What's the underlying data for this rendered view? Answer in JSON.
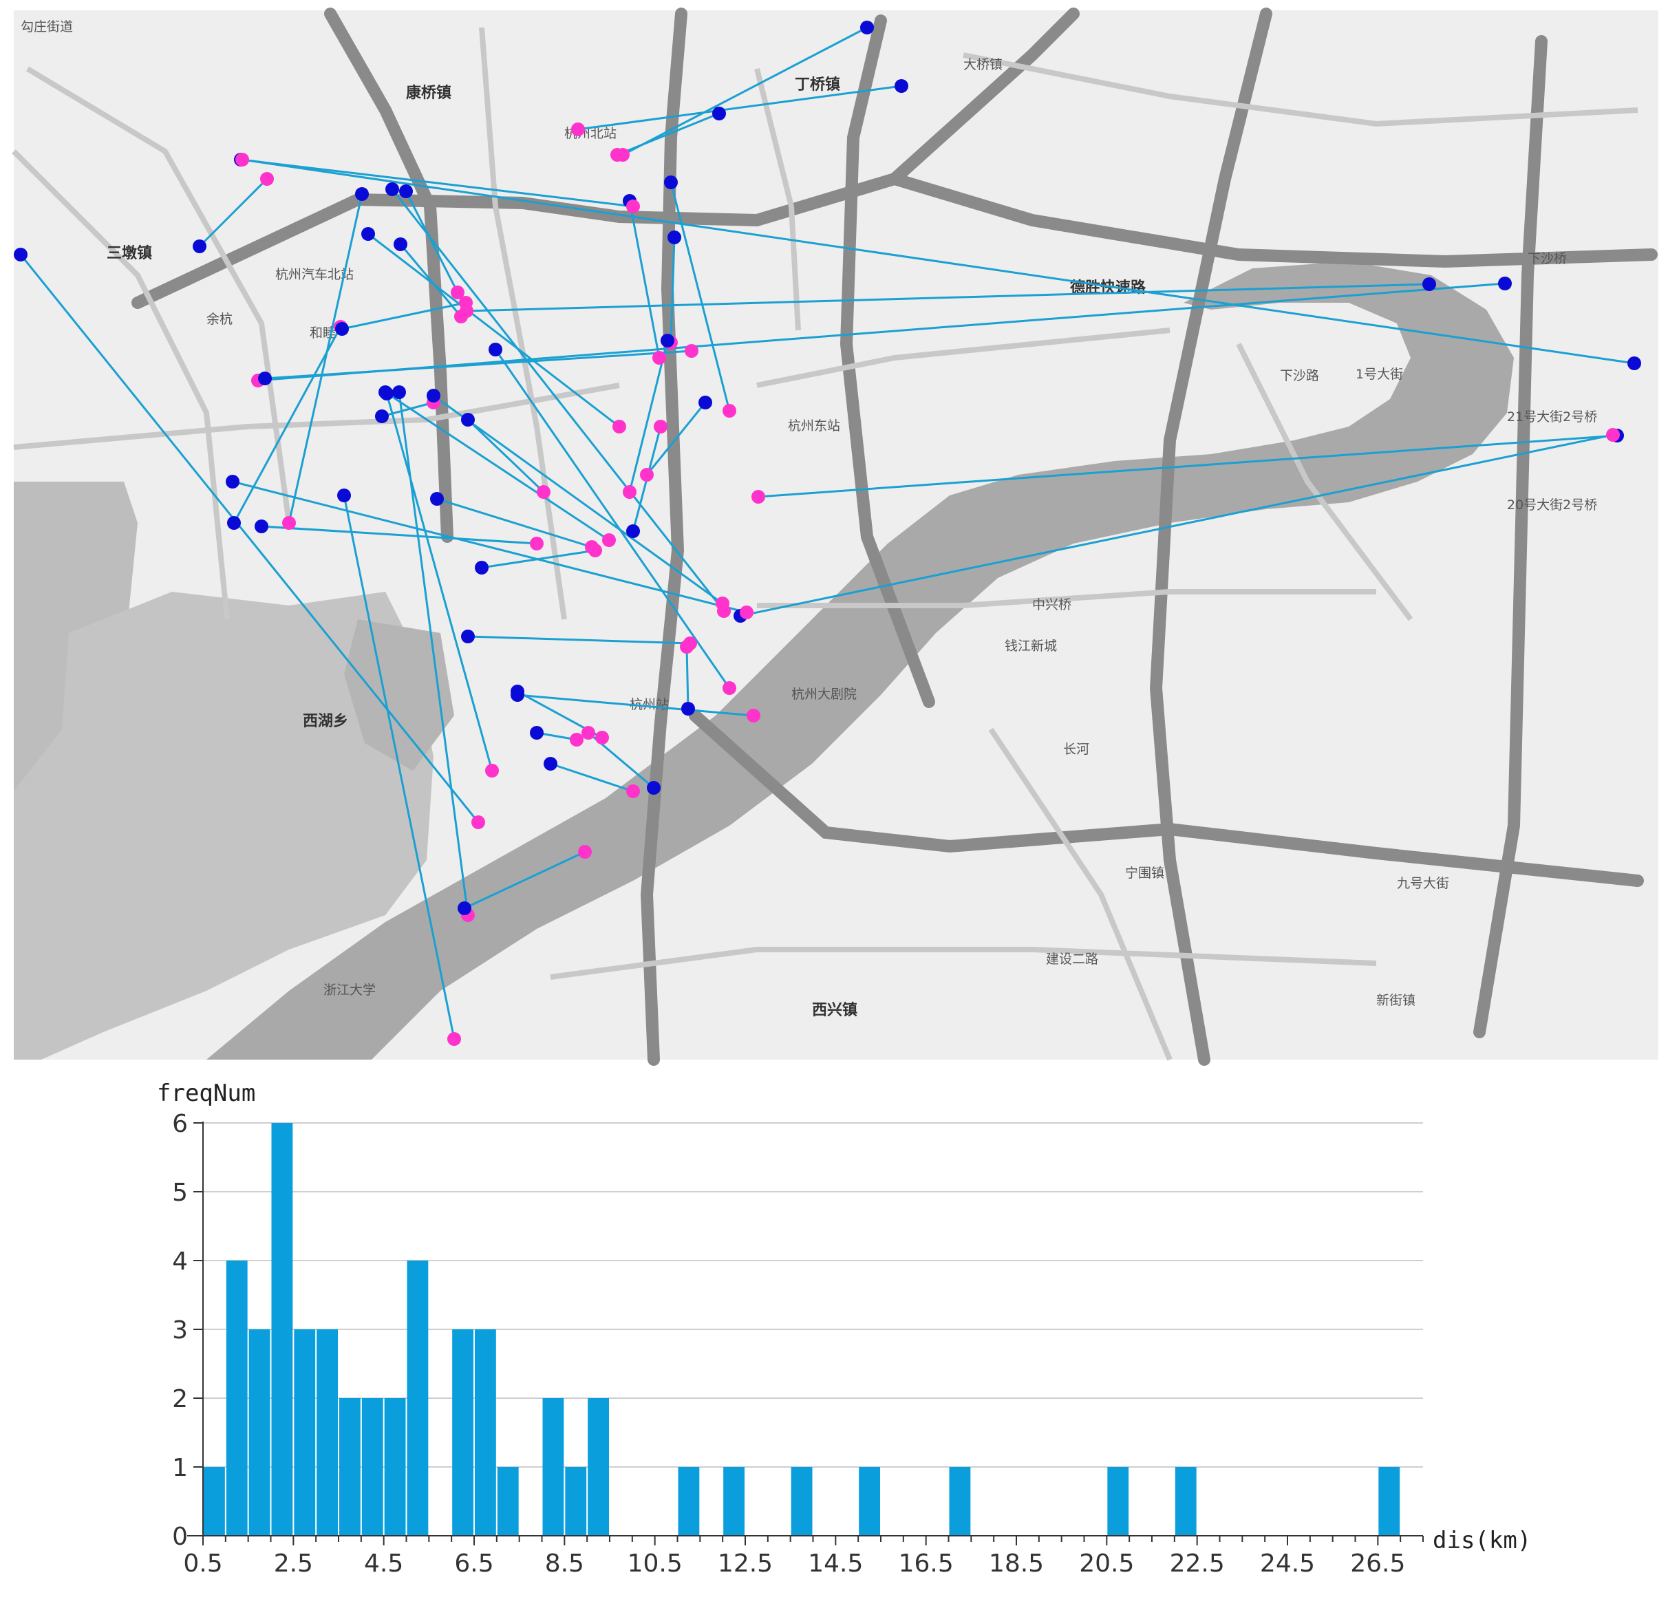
{
  "colors": {
    "map_bg": "#eeeeee",
    "river": "#a9a9a9",
    "road_major": "#8a8a8a",
    "road_minor": "#c8c8c8",
    "line": "#1aa0d2",
    "origin": "#0a0ad6",
    "destination": "#ff33cc",
    "bar": "#0a9fdc",
    "grid": "#cfcfcf"
  },
  "map": {
    "labels": [
      {
        "text": "勾庄街道"
      },
      {
        "text": "康桥镇"
      },
      {
        "text": "丁桥镇"
      },
      {
        "text": "大桥镇"
      },
      {
        "text": "杭州北站"
      },
      {
        "text": "三墩镇"
      },
      {
        "text": "杭州汽车北站"
      },
      {
        "text": "和睦"
      },
      {
        "text": "杭州东站"
      },
      {
        "text": "下沙路"
      },
      {
        "text": "1号大街"
      },
      {
        "text": "中兴桥"
      },
      {
        "text": "钱江新城"
      },
      {
        "text": "西湖乡"
      },
      {
        "text": "杭州站"
      },
      {
        "text": "杭州大剧院"
      },
      {
        "text": "长河"
      },
      {
        "text": "西兴镇"
      },
      {
        "text": "新街镇"
      },
      {
        "text": "宁围镇"
      },
      {
        "text": "德胜快速路"
      },
      {
        "text": "下沙桥"
      },
      {
        "text": "九号大街"
      },
      {
        "text": "建设二路"
      },
      {
        "text": "20号大街2号桥"
      },
      {
        "text": "21号大街2号桥"
      },
      {
        "text": "余杭"
      },
      {
        "text": "浙江大学"
      }
    ]
  },
  "chart_data": {
    "type": "bar",
    "title": "",
    "ylabel": "freqNum",
    "xlabel": "dis(km)",
    "ylim": [
      0,
      6
    ],
    "xlim": [
      0.5,
      27.5
    ],
    "bin_width": 0.5,
    "yticks": [
      "0",
      "1",
      "2",
      "3",
      "4",
      "5",
      "6"
    ],
    "xticks": [
      "0.5",
      "2.5",
      "4.5",
      "6.5",
      "8.5",
      "10.5",
      "12.5",
      "14.5",
      "16.5",
      "18.5",
      "20.5",
      "22.5",
      "24.5",
      "26.5"
    ],
    "bins": [
      {
        "start": 0.5,
        "value": 1
      },
      {
        "start": 1.0,
        "value": 4
      },
      {
        "start": 1.5,
        "value": 3
      },
      {
        "start": 2.0,
        "value": 6
      },
      {
        "start": 2.5,
        "value": 3
      },
      {
        "start": 3.0,
        "value": 3
      },
      {
        "start": 3.5,
        "value": 2
      },
      {
        "start": 4.0,
        "value": 2
      },
      {
        "start": 4.5,
        "value": 2
      },
      {
        "start": 5.0,
        "value": 4
      },
      {
        "start": 6.0,
        "value": 3
      },
      {
        "start": 6.5,
        "value": 3
      },
      {
        "start": 7.0,
        "value": 1
      },
      {
        "start": 8.0,
        "value": 2
      },
      {
        "start": 8.5,
        "value": 1
      },
      {
        "start": 9.0,
        "value": 2
      },
      {
        "start": 11.0,
        "value": 1
      },
      {
        "start": 12.0,
        "value": 1
      },
      {
        "start": 13.5,
        "value": 1
      },
      {
        "start": 15.0,
        "value": 1
      },
      {
        "start": 17.0,
        "value": 1
      },
      {
        "start": 20.5,
        "value": 1
      },
      {
        "start": 22.0,
        "value": 1
      },
      {
        "start": 26.5,
        "value": 1
      }
    ],
    "grid": true,
    "legend": "none"
  }
}
